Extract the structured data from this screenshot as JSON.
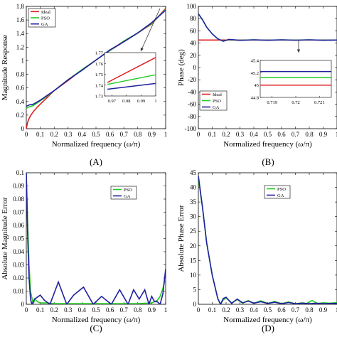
{
  "chart_data": [
    {
      "type": "line",
      "panel_label": "(A)",
      "xlabel": "Normalized frequency (ω/π)",
      "ylabel": "Magnitude Response",
      "xlim": [
        0,
        1
      ],
      "ylim": [
        0,
        1.8
      ],
      "xticks": [
        "0",
        "0.1",
        "0.2",
        "0.3",
        "0.4",
        "0.5",
        "0.6",
        "0.7",
        "0.8",
        "0.9",
        "1"
      ],
      "yticks": [
        "0",
        "0.2",
        "0.4",
        "0.6",
        "0.8",
        "1",
        "1.2",
        "1.4",
        "1.6",
        "1.8"
      ],
      "legend_position": "top-left",
      "series": [
        {
          "name": "Ideal",
          "color": "#e02020",
          "x": [
            0,
            0.01,
            0.02,
            0.03,
            0.05,
            0.08,
            0.1,
            0.15,
            0.2,
            0.3,
            0.4,
            0.5,
            0.6,
            0.7,
            0.8,
            0.9,
            1.0
          ],
          "y": [
            0.0,
            0.1,
            0.15,
            0.19,
            0.25,
            0.32,
            0.36,
            0.46,
            0.56,
            0.71,
            0.87,
            1.01,
            1.15,
            1.28,
            1.41,
            1.54,
            1.77
          ]
        },
        {
          "name": "PSO",
          "color": "#22cc22",
          "x": [
            0,
            0.02,
            0.05,
            0.1,
            0.15,
            0.2,
            0.3,
            0.4,
            0.5,
            0.6,
            0.7,
            0.8,
            0.9,
            1.0
          ],
          "y": [
            0.3,
            0.32,
            0.34,
            0.41,
            0.48,
            0.56,
            0.72,
            0.87,
            1.01,
            1.15,
            1.29,
            1.41,
            1.55,
            1.755
          ]
        },
        {
          "name": "GA",
          "color": "#2020a0",
          "x": [
            0,
            0.02,
            0.05,
            0.1,
            0.15,
            0.2,
            0.3,
            0.4,
            0.5,
            0.6,
            0.7,
            0.8,
            0.9,
            1.0
          ],
          "y": [
            0.33,
            0.35,
            0.36,
            0.42,
            0.49,
            0.56,
            0.72,
            0.86,
            1.01,
            1.16,
            1.28,
            1.41,
            1.56,
            1.745
          ]
        }
      ],
      "inset": {
        "xlim": [
          0.965,
          1.0
        ],
        "ylim": [
          1.73,
          1.775
        ],
        "xticks": [
          "0.97",
          "0.98",
          "0.99",
          "1"
        ],
        "yticks": [
          "1.73",
          "1.74",
          "1.75",
          "1.76",
          "1.77"
        ],
        "series": [
          {
            "name": "Ideal",
            "x": [
              0.967,
              1.0
            ],
            "y": [
              1.744,
              1.77
            ]
          },
          {
            "name": "PSO",
            "x": [
              0.967,
              1.0
            ],
            "y": [
              1.742,
              1.752
            ]
          },
          {
            "name": "GA",
            "x": [
              0.967,
              1.0
            ],
            "y": [
              1.737,
              1.743
            ]
          }
        ]
      }
    },
    {
      "type": "line",
      "panel_label": "(B)",
      "xlabel": "Normalized frequency (ω/π)",
      "ylabel": "Phase (deg)",
      "xlim": [
        0,
        1
      ],
      "ylim": [
        -100,
        100
      ],
      "xticks": [
        "0",
        "0.1",
        "0.2",
        "0.3",
        "0.4",
        "0.5",
        "0.6",
        "0.7",
        "0.8",
        "0.9",
        "1"
      ],
      "yticks": [
        "-100",
        "-80",
        "-60",
        "-40",
        "-20",
        "0",
        "20",
        "40",
        "60",
        "80",
        "100"
      ],
      "legend_position": "bottom-left",
      "series": [
        {
          "name": "Ideal",
          "color": "#e02020",
          "x": [
            0,
            1
          ],
          "y": [
            45,
            45
          ]
        },
        {
          "name": "PSO",
          "color": "#22cc22",
          "x": [
            0,
            0.03,
            0.06,
            0.1,
            0.14,
            0.18,
            0.22,
            0.3,
            0.4,
            0.5,
            0.6,
            0.7,
            0.8,
            0.9,
            1.0
          ],
          "y": [
            88,
            78,
            66,
            55,
            47,
            43.5,
            45.6,
            44.7,
            45.2,
            44.8,
            45.2,
            44.9,
            45.2,
            44.8,
            45
          ]
        },
        {
          "name": "GA",
          "color": "#2020a0",
          "x": [
            0,
            0.03,
            0.06,
            0.1,
            0.14,
            0.18,
            0.22,
            0.3,
            0.4,
            0.5,
            0.6,
            0.7,
            0.8,
            0.9,
            1.0
          ],
          "y": [
            88,
            78,
            66,
            55,
            47,
            43,
            46,
            44.5,
            45.4,
            44.6,
            45.3,
            44.8,
            45.3,
            44.7,
            45
          ]
        }
      ],
      "inset": {
        "xlim": [
          0.7185,
          0.7215
        ],
        "ylim": [
          44.8,
          45.4
        ],
        "xticks": [
          "0.719",
          "0.72",
          "0.721"
        ],
        "yticks": [
          "44.8",
          "45",
          "45.2",
          "45.4"
        ],
        "series": [
          {
            "name": "Ideal",
            "x": [
              0.7185,
              0.7215
            ],
            "y": [
              45.0,
              45.0
            ]
          },
          {
            "name": "PSO",
            "x": [
              0.7185,
              0.7215
            ],
            "y": [
              45.12,
              45.12
            ]
          },
          {
            "name": "GA",
            "x": [
              0.7185,
              0.7215
            ],
            "y": [
              45.22,
              45.22
            ]
          }
        ]
      }
    },
    {
      "type": "line",
      "panel_label": "(C)",
      "xlabel": "Normalized frequency (ω/π)",
      "ylabel": "Absolute Magnitude Error",
      "xlim": [
        0,
        1
      ],
      "ylim": [
        0,
        0.1
      ],
      "xticks": [
        "0",
        "0.1",
        "0.2",
        "0.3",
        "0.4",
        "0.5",
        "0.6",
        "0.7",
        "0.8",
        "0.9",
        "1"
      ],
      "yticks": [
        "0",
        "0.01",
        "0.02",
        "0.03",
        "0.04",
        "0.05",
        "0.06",
        "0.07",
        "0.08",
        "0.09",
        "0.1"
      ],
      "legend_position": "top-right",
      "series": [
        {
          "name": "PSO",
          "color": "#22cc22",
          "x": [
            0,
            0.01,
            0.02,
            0.03,
            0.05,
            0.06,
            0.08,
            0.1,
            0.15,
            0.2,
            0.3,
            0.4,
            0.5,
            0.6,
            0.7,
            0.8,
            0.9,
            0.94,
            0.96,
            0.98,
            1.0
          ],
          "y": [
            0.1,
            0.06,
            0.03,
            0.01,
            0.0,
            0.004,
            0.002,
            0.001,
            0.001,
            0.0005,
            0.0005,
            0.0005,
            0.0005,
            0.0005,
            0.0005,
            0.0005,
            0.001,
            0.003,
            0.006,
            0.012,
            0.02
          ]
        },
        {
          "name": "GA",
          "color": "#2020a0",
          "x": [
            0,
            0.01,
            0.02,
            0.03,
            0.04,
            0.06,
            0.1,
            0.13,
            0.17,
            0.23,
            0.29,
            0.34,
            0.41,
            0.48,
            0.54,
            0.61,
            0.67,
            0.73,
            0.77,
            0.81,
            0.85,
            0.88,
            0.9,
            0.92,
            0.94,
            0.96,
            0.98,
            1.0
          ],
          "y": [
            0.1,
            0.05,
            0.02,
            0.004,
            0.0,
            0.004,
            0.007,
            0.003,
            0.0,
            0.017,
            0.0,
            0.007,
            0.013,
            0.0,
            0.006,
            0.0,
            0.011,
            0.0,
            0.011,
            0.004,
            0.011,
            0.0,
            0.006,
            0.002,
            0.002,
            0.0,
            0.008,
            0.027
          ]
        }
      ]
    },
    {
      "type": "line",
      "panel_label": "(D)",
      "xlabel": "Normalized frequency (ω/π)",
      "ylabel": "Absolute Phase Error",
      "xlim": [
        0,
        1
      ],
      "ylim": [
        0,
        45
      ],
      "xticks": [
        "0",
        "0.1",
        "0.2",
        "0.3",
        "0.4",
        "0.5",
        "0.6",
        "0.7",
        "0.8",
        "0.9",
        "1"
      ],
      "yticks": [
        "0",
        "5",
        "10",
        "15",
        "20",
        "25",
        "30",
        "35",
        "40",
        "45"
      ],
      "legend_position": "top-right",
      "series": [
        {
          "name": "PSO",
          "color": "#22cc22",
          "x": [
            0,
            0.03,
            0.06,
            0.1,
            0.14,
            0.16,
            0.18,
            0.2,
            0.24,
            0.28,
            0.32,
            0.36,
            0.4,
            0.45,
            0.5,
            0.55,
            0.6,
            0.65,
            0.7,
            0.75,
            0.78,
            0.82,
            0.86,
            0.9,
            0.95,
            1.0
          ],
          "y": [
            43,
            33,
            21,
            10,
            2,
            0.0,
            1.5,
            2.2,
            0.5,
            1.6,
            0.4,
            1.3,
            0.3,
            1.2,
            0.3,
            1.0,
            0.2,
            0.8,
            0.2,
            0.5,
            0.3,
            1.3,
            0.3,
            0.5,
            0.4,
            0.6
          ]
        },
        {
          "name": "GA",
          "color": "#2020a0",
          "x": [
            0,
            0.03,
            0.06,
            0.1,
            0.14,
            0.16,
            0.18,
            0.2,
            0.24,
            0.28,
            0.32,
            0.36,
            0.4,
            0.45,
            0.5,
            0.55,
            0.6,
            0.65,
            0.7,
            0.75,
            0.8,
            0.85,
            0.9,
            0.95,
            1.0
          ],
          "y": [
            44,
            33,
            21,
            10,
            2,
            0.0,
            2.0,
            2.4,
            0.3,
            1.8,
            0.5,
            1.1,
            0.4,
            0.9,
            0.3,
            0.7,
            0.2,
            0.6,
            0.2,
            0.4,
            0.2,
            0.4,
            0.2,
            0.3,
            0.3
          ]
        }
      ]
    }
  ]
}
